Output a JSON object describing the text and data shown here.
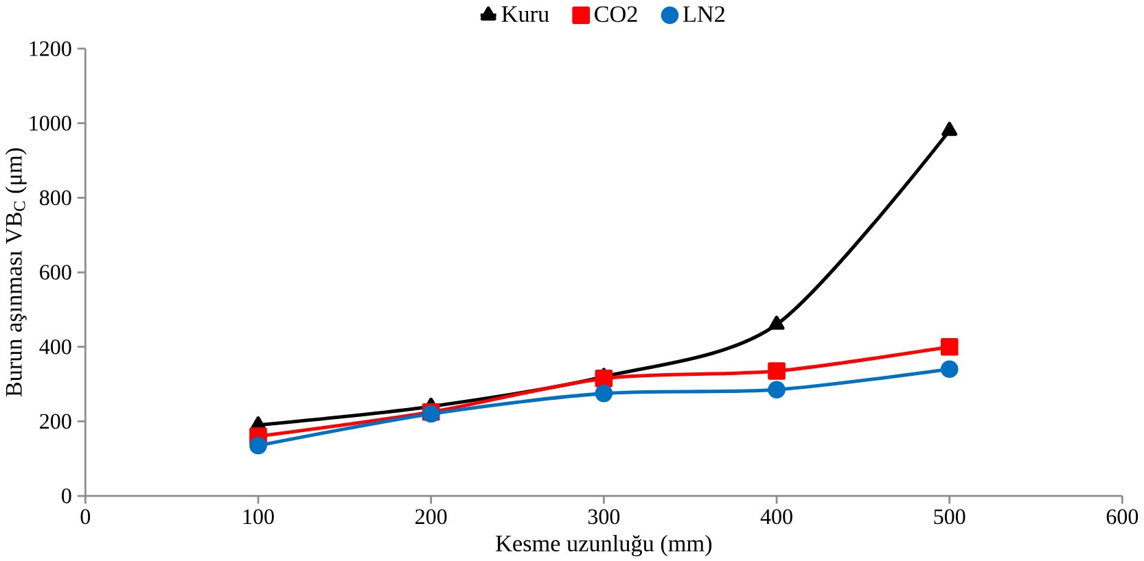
{
  "chart_data": {
    "type": "line",
    "xlabel": "Kesme uzunluğu (mm)",
    "ylabel": "Burun aşınması VB$_{C}$ (μm)",
    "x": [
      100,
      200,
      300,
      400,
      500
    ],
    "series": [
      {
        "name": "Kuru",
        "color": "#000000",
        "marker": "triangle",
        "values": [
          190,
          240,
          320,
          460,
          980
        ]
      },
      {
        "name": "CO2",
        "color": "#ff0000",
        "marker": "square",
        "values": [
          160,
          225,
          315,
          335,
          400
        ]
      },
      {
        "name": "LN2",
        "color": "#0070c0",
        "marker": "circle",
        "values": [
          135,
          220,
          275,
          285,
          340
        ]
      }
    ],
    "xlim": [
      0,
      600
    ],
    "xticks": [
      0,
      100,
      200,
      300,
      400,
      500,
      600
    ],
    "ylim": [
      0,
      1200
    ],
    "yticks": [
      0,
      200,
      400,
      600,
      800,
      1000,
      1200
    ],
    "grid": false,
    "legend": "top",
    "line_style": "solid"
  }
}
